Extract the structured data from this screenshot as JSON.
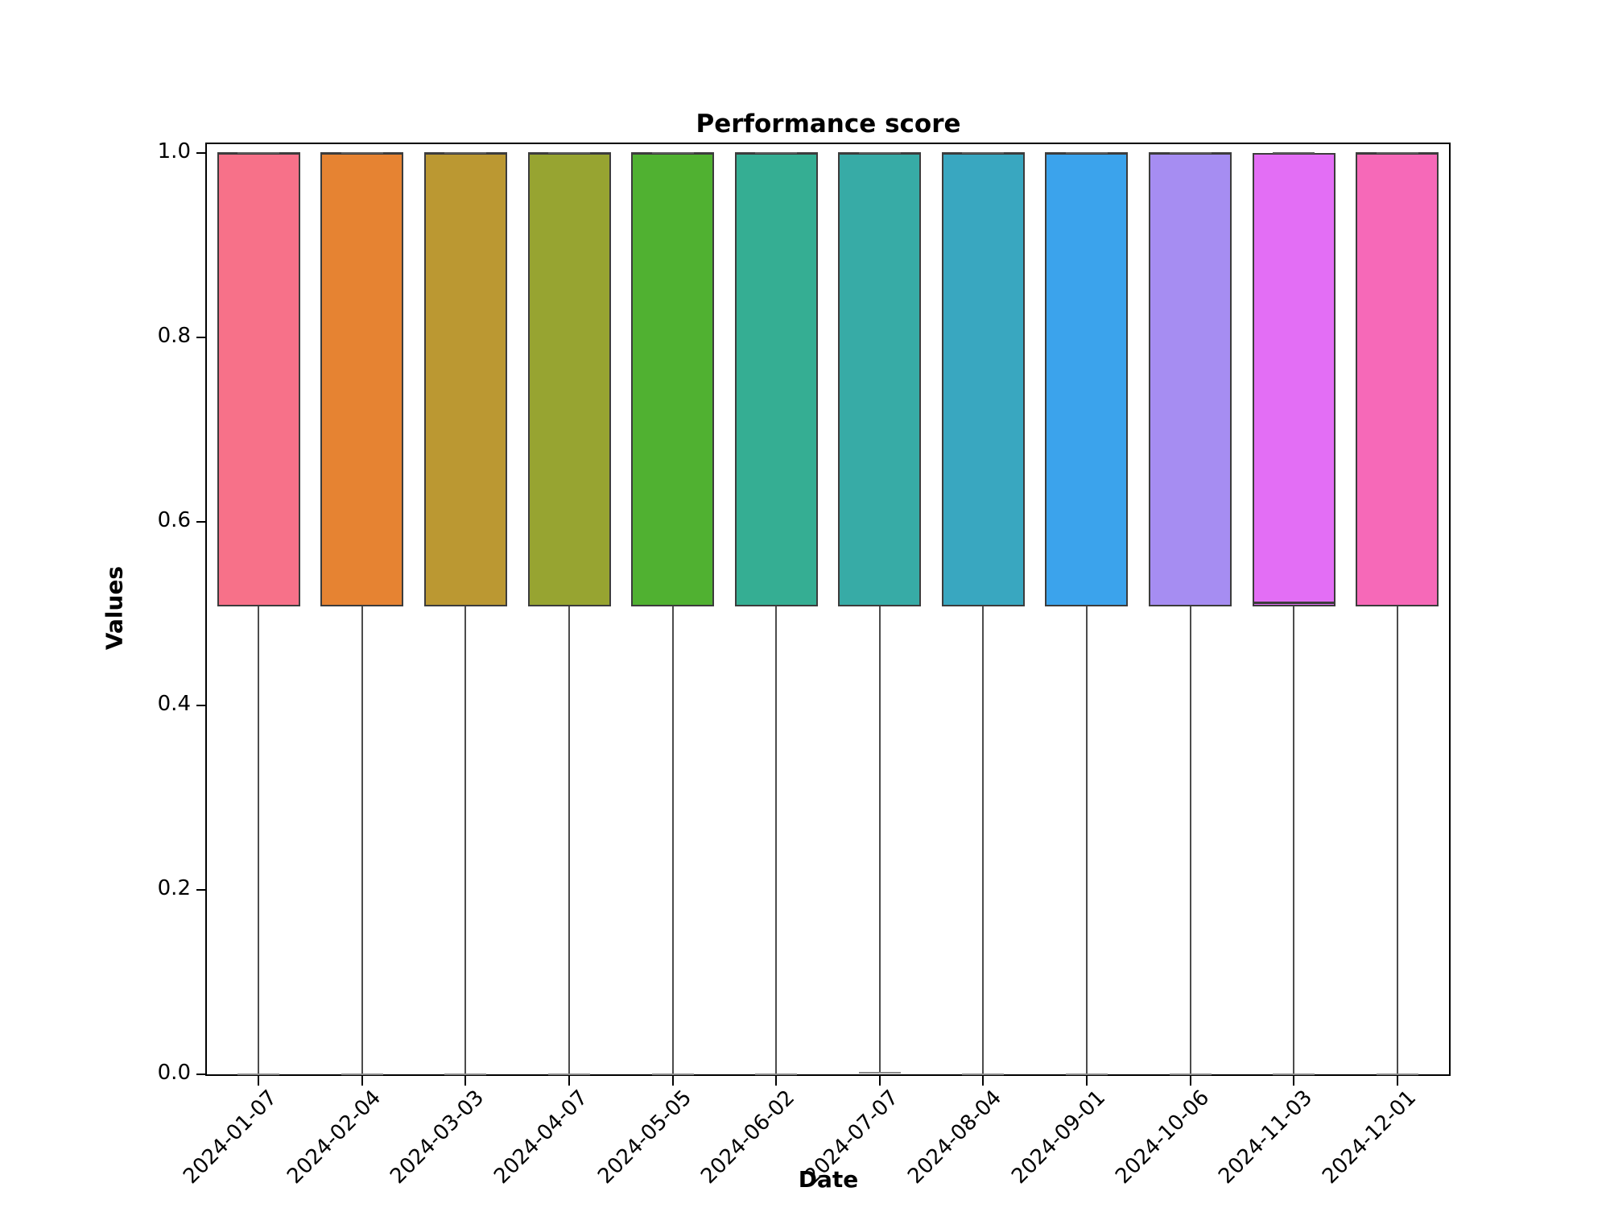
{
  "chart_data": {
    "type": "boxplot",
    "title": "Performance score",
    "xlabel": "Date",
    "ylabel": "Values",
    "ylim": [
      0.0,
      1.0
    ],
    "yticks": [
      0.0,
      0.2,
      0.4,
      0.6,
      0.8,
      1.0
    ],
    "grid": false,
    "legend": "none",
    "box_edge_color": "#3c3c3c",
    "whisker_color": "#4c4c4c",
    "cap_color": "#8a8a8a",
    "categories": [
      "2024-01-07",
      "2024-02-04",
      "2024-03-03",
      "2024-04-07",
      "2024-05-05",
      "2024-06-02",
      "2024-07-07",
      "2024-08-04",
      "2024-09-01",
      "2024-10-06",
      "2024-11-03",
      "2024-12-01"
    ],
    "series": [
      {
        "date": "2024-01-07",
        "color": "#f77189",
        "whisker_low": 0.0,
        "q1": 0.508,
        "median": 1.0,
        "q3": 1.0,
        "whisker_high": 1.0
      },
      {
        "date": "2024-02-04",
        "color": "#e68332",
        "whisker_low": 0.0,
        "q1": 0.508,
        "median": 1.0,
        "q3": 1.0,
        "whisker_high": 1.0
      },
      {
        "date": "2024-03-03",
        "color": "#bb9832",
        "whisker_low": 0.0,
        "q1": 0.508,
        "median": 1.0,
        "q3": 1.0,
        "whisker_high": 1.0
      },
      {
        "date": "2024-04-07",
        "color": "#97a431",
        "whisker_low": 0.0,
        "q1": 0.508,
        "median": 1.0,
        "q3": 1.0,
        "whisker_high": 1.0
      },
      {
        "date": "2024-05-05",
        "color": "#50b131",
        "whisker_low": 0.0,
        "q1": 0.508,
        "median": 1.0,
        "q3": 1.0,
        "whisker_high": 1.0
      },
      {
        "date": "2024-06-02",
        "color": "#35ae93",
        "whisker_low": 0.0,
        "q1": 0.508,
        "median": 1.0,
        "q3": 1.0,
        "whisker_high": 1.0
      },
      {
        "date": "2024-07-07",
        "color": "#37aba6",
        "whisker_low": 0.002,
        "q1": 0.508,
        "median": 1.0,
        "q3": 1.0,
        "whisker_high": 1.0
      },
      {
        "date": "2024-08-04",
        "color": "#39a7c0",
        "whisker_low": 0.0,
        "q1": 0.508,
        "median": 1.0,
        "q3": 1.0,
        "whisker_high": 1.0
      },
      {
        "date": "2024-09-01",
        "color": "#3ba3ec",
        "whisker_low": 0.0,
        "q1": 0.508,
        "median": 1.0,
        "q3": 1.0,
        "whisker_high": 1.0
      },
      {
        "date": "2024-10-06",
        "color": "#a68df2",
        "whisker_low": 0.0,
        "q1": 0.508,
        "median": 1.0,
        "q3": 1.0,
        "whisker_high": 1.0
      },
      {
        "date": "2024-11-03",
        "color": "#e36ef5",
        "whisker_low": 0.0,
        "q1": 0.508,
        "median": 0.512,
        "q3": 1.0,
        "whisker_high": 1.0
      },
      {
        "date": "2024-12-01",
        "color": "#f669b8",
        "whisker_low": 0.0,
        "q1": 0.508,
        "median": 1.0,
        "q3": 1.0,
        "whisker_high": 1.0
      }
    ]
  }
}
